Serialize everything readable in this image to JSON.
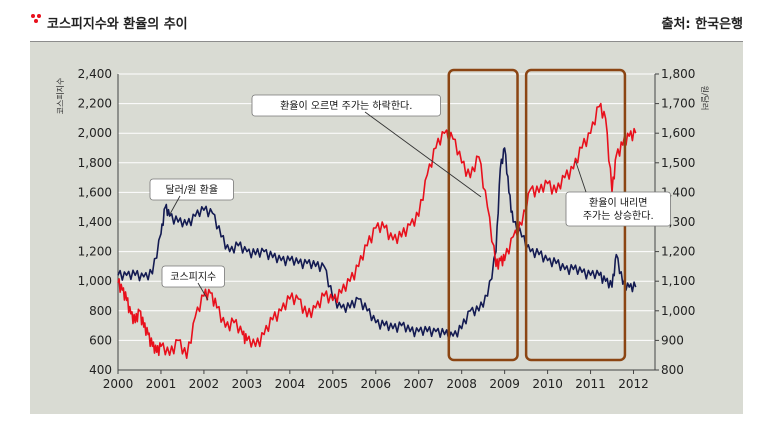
{
  "header": {
    "title": "코스피지수와 환율의 추이",
    "source": "출처: 한국은행"
  },
  "colors": {
    "kospi": "#e8101c",
    "exchange_rate": "#141b52",
    "highlight_box": "#8b4513",
    "panel": "#d9dbd3"
  },
  "chart_data": {
    "type": "line",
    "title": "코스피지수와 환율의 추이",
    "xlabel": "",
    "ylabel": "코스피지수",
    "y2label": "원/달러",
    "xlim": [
      2000,
      2012.5
    ],
    "ylim": [
      400,
      2400
    ],
    "y2lim": [
      800,
      1800
    ],
    "x_ticks": [
      2000,
      2001,
      2002,
      2003,
      2004,
      2005,
      2006,
      2007,
      2008,
      2009,
      2010,
      2011,
      2012
    ],
    "x_tick_labels": [
      "2000",
      "2001",
      "2002",
      "2003",
      "2004",
      "2005",
      "2006",
      "2007",
      "2008",
      "2009",
      "2010",
      "2011",
      "2012"
    ],
    "y_ticks": [
      400,
      600,
      800,
      1000,
      1200,
      1400,
      1600,
      1800,
      2000,
      2200,
      2400
    ],
    "y_tick_labels": [
      "400",
      "600",
      "800",
      "1,000",
      "1,200",
      "1,400",
      "1,600",
      "1,800",
      "2,000",
      "2,200",
      "2,400"
    ],
    "y2_ticks": [
      800,
      900,
      1000,
      1100,
      1200,
      1300,
      1400,
      1500,
      1600,
      1700,
      1800
    ],
    "y2_tick_labels": [
      "800",
      "900",
      "1,000",
      "1,100",
      "1,200",
      "1,300",
      "1,400",
      "1,500",
      "1,600",
      "1,700",
      "1,800"
    ],
    "grid": "horizontal",
    "series": [
      {
        "name": "코스피지수",
        "axis": "left",
        "x": [
          2000.0,
          2000.1,
          2000.2,
          2000.3,
          2000.4,
          2000.5,
          2000.6,
          2000.7,
          2000.8,
          2000.9,
          2001.0,
          2001.2,
          2001.4,
          2001.6,
          2001.8,
          2002.0,
          2002.15,
          2002.3,
          2002.5,
          2002.7,
          2002.9,
          2003.0,
          2003.2,
          2003.4,
          2003.6,
          2003.8,
          2004.0,
          2004.2,
          2004.4,
          2004.6,
          2004.8,
          2005.0,
          2005.2,
          2005.4,
          2005.6,
          2005.8,
          2006.0,
          2006.2,
          2006.4,
          2006.6,
          2006.8,
          2007.0,
          2007.2,
          2007.4,
          2007.6,
          2007.8,
          2008.0,
          2008.2,
          2008.4,
          2008.6,
          2008.8,
          2008.9,
          2009.0,
          2009.2,
          2009.4,
          2009.6,
          2009.8,
          2010.0,
          2010.2,
          2010.4,
          2010.6,
          2010.8,
          2011.0,
          2011.2,
          2011.35,
          2011.5,
          2011.6,
          2011.75,
          2011.9,
          2012.05
        ],
        "values": [
          990,
          940,
          870,
          780,
          720,
          800,
          690,
          640,
          560,
          520,
          560,
          500,
          600,
          480,
          760,
          900,
          920,
          820,
          690,
          720,
          640,
          600,
          560,
          640,
          740,
          800,
          880,
          880,
          760,
          820,
          900,
          870,
          920,
          1000,
          1100,
          1240,
          1360,
          1360,
          1280,
          1300,
          1380,
          1440,
          1720,
          1900,
          2000,
          1960,
          1800,
          1700,
          1840,
          1500,
          1100,
          1140,
          1140,
          1300,
          1380,
          1620,
          1600,
          1660,
          1600,
          1700,
          1760,
          1900,
          2000,
          2180,
          2100,
          1600,
          1850,
          1920,
          1980,
          2000
        ]
      },
      {
        "name": "달러/원 환율",
        "axis": "right",
        "x": [
          2000.0,
          2000.2,
          2000.4,
          2000.6,
          2000.8,
          2001.0,
          2001.1,
          2001.2,
          2001.4,
          2001.6,
          2001.8,
          2002.0,
          2002.2,
          2002.4,
          2002.6,
          2002.8,
          2003.0,
          2003.2,
          2003.4,
          2003.6,
          2003.8,
          2004.0,
          2004.2,
          2004.4,
          2004.6,
          2004.8,
          2005.0,
          2005.2,
          2005.4,
          2005.6,
          2005.8,
          2006.0,
          2006.2,
          2006.4,
          2006.6,
          2006.8,
          2007.0,
          2007.2,
          2007.4,
          2007.6,
          2007.8,
          2008.0,
          2008.2,
          2008.4,
          2008.6,
          2008.8,
          2008.9,
          2009.0,
          2009.1,
          2009.2,
          2009.4,
          2009.6,
          2009.8,
          2010.0,
          2010.2,
          2010.4,
          2010.6,
          2010.8,
          2011.0,
          2011.2,
          2011.35,
          2011.5,
          2011.6,
          2011.75,
          2011.9,
          2012.05
        ],
        "values": [
          1120,
          1120,
          1120,
          1115,
          1125,
          1260,
          1350,
          1320,
          1300,
          1290,
          1320,
          1340,
          1330,
          1250,
          1200,
          1220,
          1200,
          1190,
          1200,
          1180,
          1170,
          1170,
          1160,
          1160,
          1150,
          1150,
          1040,
          1010,
          1010,
          1040,
          1000,
          960,
          950,
          940,
          950,
          930,
          930,
          930,
          930,
          920,
          915,
          940,
          1000,
          1000,
          1050,
          1200,
          1480,
          1550,
          1400,
          1300,
          1250,
          1200,
          1190,
          1170,
          1160,
          1140,
          1140,
          1130,
          1120,
          1120,
          1100,
          1080,
          1190,
          1090,
          1080,
          1080
        ]
      }
    ],
    "annotations": [
      {
        "text": "달러/원 환율",
        "target_series": "달러/원 환율"
      },
      {
        "text": "코스피지수",
        "target_series": "코스피지수"
      },
      {
        "text": "환율이 오르면 주가는 하락한다.",
        "target_series": "달러/원 환율"
      },
      {
        "text": [
          "환율이 내리면",
          "주가는 상승한다."
        ],
        "target_series": "달러/원 환율"
      }
    ],
    "highlight_ranges": [
      {
        "x": [
          2007.7,
          2009.3
        ]
      },
      {
        "x": [
          2009.5,
          2011.8
        ]
      }
    ]
  }
}
